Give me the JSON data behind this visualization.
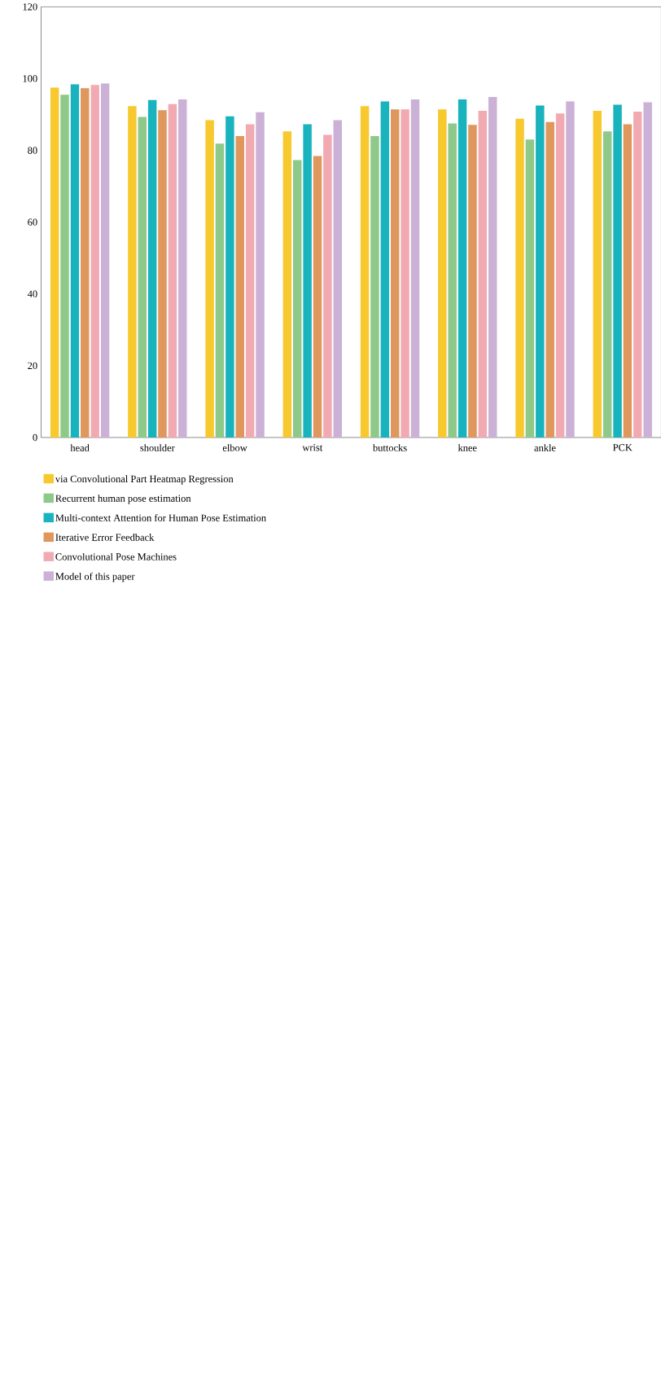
{
  "chart_data": {
    "type": "bar",
    "categories": [
      "head",
      "shoulder",
      "elbow",
      "wrist",
      "buttocks",
      "knee",
      "ankle",
      "PCK"
    ],
    "series": [
      {
        "name": "via Convolutional Part Heatmap Regression",
        "color": "#f7c92e",
        "values": [
          97.5,
          92.3,
          88.4,
          85.3,
          92.3,
          91.4,
          88.8,
          91.0
        ]
      },
      {
        "name": "Recurrent human pose estimation",
        "color": "#8ec98a",
        "values": [
          95.5,
          89.3,
          81.9,
          77.3,
          84.0,
          87.5,
          83.0,
          85.3
        ]
      },
      {
        "name": "Multi-context Attention for Human Pose Estimation",
        "color": "#19b3be",
        "values": [
          98.4,
          94.0,
          89.5,
          87.3,
          93.6,
          94.2,
          92.5,
          92.7
        ]
      },
      {
        "name": "Iterative Error Feedback",
        "color": "#df975d",
        "values": [
          97.3,
          91.2,
          84.0,
          78.4,
          91.4,
          87.1,
          87.9,
          87.3
        ]
      },
      {
        "name": "Convolutional Pose Machines",
        "color": "#f2aab2",
        "values": [
          98.2,
          92.9,
          87.3,
          84.3,
          91.4,
          91.0,
          90.3,
          90.8
        ]
      },
      {
        "name": "Model of this paper",
        "color": "#ccb1d6",
        "values": [
          98.6,
          94.2,
          90.6,
          88.4,
          94.2,
          94.9,
          93.6,
          93.4
        ]
      }
    ],
    "ylim": [
      0,
      120
    ],
    "yticks": [
      0,
      20,
      40,
      60,
      80,
      100,
      120
    ],
    "legend": "bottom"
  }
}
